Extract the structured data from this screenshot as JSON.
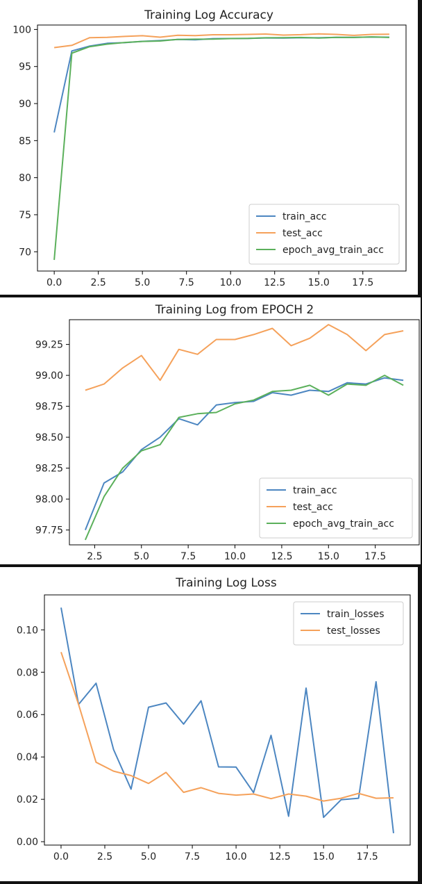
{
  "chart_data": [
    {
      "type": "line",
      "title": "Training Log Accuracy",
      "xlim": [
        -0.95,
        19.95
      ],
      "ylim": [
        67.4,
        100.6
      ],
      "xticks": [
        0,
        2.5,
        5,
        7.5,
        10,
        12.5,
        15,
        17.5
      ],
      "yticks": [
        70,
        75,
        80,
        85,
        90,
        95,
        100
      ],
      "tick_decimals": 1,
      "legend_position": "lower-right",
      "series": [
        {
          "name": "train_acc",
          "color": "#4c86c1",
          "x": [
            0,
            1,
            2,
            3,
            4,
            5,
            6,
            7,
            8,
            9,
            10,
            11,
            12,
            13,
            14,
            15,
            16,
            17,
            18,
            19
          ],
          "y": [
            86.1,
            97.1,
            97.75,
            98.13,
            98.22,
            98.4,
            98.5,
            98.65,
            98.6,
            98.76,
            98.78,
            98.79,
            98.86,
            98.84,
            98.88,
            98.87,
            98.94,
            98.93,
            98.98,
            98.96
          ]
        },
        {
          "name": "test_acc",
          "color": "#f5a15a",
          "x": [
            0,
            1,
            2,
            3,
            4,
            5,
            6,
            7,
            8,
            9,
            10,
            11,
            12,
            13,
            14,
            15,
            16,
            17,
            18,
            19
          ],
          "y": [
            97.55,
            97.85,
            98.88,
            98.93,
            99.06,
            99.16,
            98.96,
            99.21,
            99.17,
            99.29,
            99.29,
            99.33,
            99.38,
            99.24,
            99.3,
            99.41,
            99.33,
            99.2,
            99.33,
            99.36
          ]
        },
        {
          "name": "epoch_avg_train_acc",
          "color": "#5bb05b",
          "x": [
            0,
            1,
            2,
            3,
            4,
            5,
            6,
            7,
            8,
            9,
            10,
            11,
            12,
            13,
            14,
            15,
            16,
            17,
            18,
            19
          ],
          "y": [
            68.9,
            96.8,
            97.67,
            98.02,
            98.25,
            98.39,
            98.44,
            98.66,
            98.69,
            98.7,
            98.77,
            98.8,
            98.87,
            98.88,
            98.92,
            98.84,
            98.93,
            98.92,
            99.0,
            98.92
          ]
        }
      ]
    },
    {
      "type": "line",
      "title": "Training Log from EPOCH 2",
      "xlim": [
        1.15,
        19.85
      ],
      "ylim": [
        97.63,
        99.45
      ],
      "xticks": [
        2.5,
        5,
        7.5,
        10,
        12.5,
        15,
        17.5
      ],
      "yticks": [
        97.75,
        98.0,
        98.25,
        98.5,
        98.75,
        99.0,
        99.25
      ],
      "tick_decimals": 2,
      "legend_position": "lower-right",
      "series": [
        {
          "name": "train_acc",
          "color": "#4c86c1",
          "x": [
            2,
            3,
            4,
            5,
            6,
            7,
            8,
            9,
            10,
            11,
            12,
            13,
            14,
            15,
            16,
            17,
            18,
            19
          ],
          "y": [
            97.75,
            98.13,
            98.22,
            98.4,
            98.5,
            98.65,
            98.6,
            98.76,
            98.78,
            98.79,
            98.86,
            98.84,
            98.88,
            98.87,
            98.94,
            98.93,
            98.98,
            98.96
          ]
        },
        {
          "name": "test_acc",
          "color": "#f5a15a",
          "x": [
            2,
            3,
            4,
            5,
            6,
            7,
            8,
            9,
            10,
            11,
            12,
            13,
            14,
            15,
            16,
            17,
            18,
            19
          ],
          "y": [
            98.88,
            98.93,
            99.06,
            99.16,
            98.96,
            99.21,
            99.17,
            99.29,
            99.29,
            99.33,
            99.38,
            99.24,
            99.3,
            99.41,
            99.33,
            99.2,
            99.33,
            99.36
          ]
        },
        {
          "name": "epoch_avg_train_acc",
          "color": "#5bb05b",
          "x": [
            2,
            3,
            4,
            5,
            6,
            7,
            8,
            9,
            10,
            11,
            12,
            13,
            14,
            15,
            16,
            17,
            18,
            19
          ],
          "y": [
            97.67,
            98.02,
            98.25,
            98.39,
            98.44,
            98.66,
            98.69,
            98.7,
            98.77,
            98.8,
            98.87,
            98.88,
            98.92,
            98.84,
            98.93,
            98.92,
            99.0,
            98.92
          ]
        }
      ]
    },
    {
      "type": "line",
      "title": "Training Log Loss",
      "xlim": [
        -0.95,
        19.95
      ],
      "ylim": [
        -0.0016,
        0.1165
      ],
      "xticks": [
        0,
        2.5,
        5,
        7.5,
        10,
        12.5,
        15,
        17.5
      ],
      "yticks": [
        0.0,
        0.02,
        0.04,
        0.06,
        0.08,
        0.1
      ],
      "tick_decimals": 2,
      "legend_position": "upper-right",
      "series": [
        {
          "name": "train_losses",
          "color": "#4c86c1",
          "x": [
            0,
            1,
            2,
            3,
            4,
            5,
            6,
            7,
            8,
            9,
            10,
            11,
            12,
            13,
            14,
            15,
            16,
            17,
            18,
            19
          ],
          "y": [
            0.1105,
            0.0648,
            0.0748,
            0.0435,
            0.0248,
            0.0635,
            0.0655,
            0.0555,
            0.0665,
            0.0353,
            0.0352,
            0.0232,
            0.0502,
            0.012,
            0.0725,
            0.0115,
            0.0198,
            0.0205,
            0.0755,
            0.004
          ]
        },
        {
          "name": "test_losses",
          "color": "#f5a15a",
          "x": [
            0,
            1,
            2,
            3,
            4,
            5,
            6,
            7,
            8,
            9,
            10,
            11,
            12,
            13,
            14,
            15,
            16,
            17,
            18,
            19
          ],
          "y": [
            0.0895,
            0.0648,
            0.0375,
            0.0333,
            0.0312,
            0.0275,
            0.0327,
            0.0233,
            0.0255,
            0.0228,
            0.022,
            0.0225,
            0.0203,
            0.0225,
            0.0215,
            0.0192,
            0.0205,
            0.0228,
            0.0205,
            0.0207
          ]
        }
      ]
    }
  ]
}
